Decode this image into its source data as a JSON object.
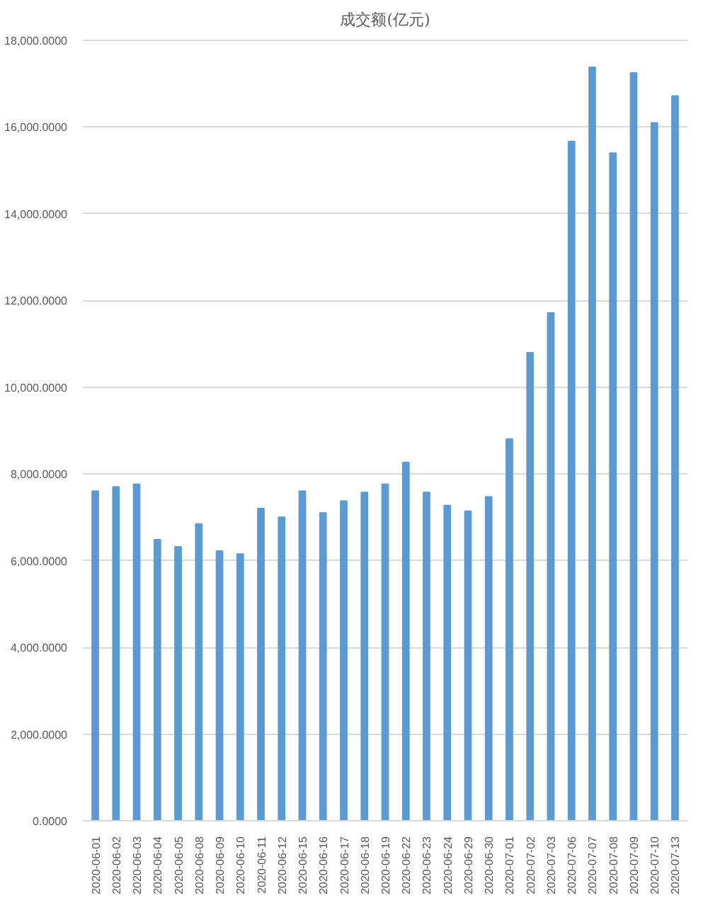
{
  "chart_data": {
    "type": "bar",
    "title": "成交额(亿元)",
    "categories": [
      "2020-06-01",
      "2020-06-02",
      "2020-06-03",
      "2020-06-04",
      "2020-06-05",
      "2020-06-08",
      "2020-06-09",
      "2020-06-10",
      "2020-06-11",
      "2020-06-12",
      "2020-06-15",
      "2020-06-16",
      "2020-06-17",
      "2020-06-18",
      "2020-06-19",
      "2020-06-22",
      "2020-06-23",
      "2020-06-24",
      "2020-06-29",
      "2020-06-30",
      "2020-07-01",
      "2020-07-02",
      "2020-07-03",
      "2020-07-06",
      "2020-07-07",
      "2020-07-08",
      "2020-07-09",
      "2020-07-10",
      "2020-07-13"
    ],
    "values": [
      7600,
      7700,
      7760,
      6480,
      6320,
      6840,
      6220,
      6150,
      7200,
      7000,
      7600,
      7100,
      7370,
      7570,
      7760,
      8260,
      7570,
      7270,
      7140,
      7470,
      8800,
      10790,
      11710,
      15660,
      17370,
      15390,
      17240,
      16090,
      16710
    ],
    "color": "#5b9bd5",
    "ylim": [
      0,
      18000
    ],
    "yticks": [
      {
        "value": 0,
        "label": "0.0000"
      },
      {
        "value": 2000,
        "label": "2,000.0000"
      },
      {
        "value": 4000,
        "label": "4,000.0000"
      },
      {
        "value": 6000,
        "label": "6,000.0000"
      },
      {
        "value": 8000,
        "label": "8,000.0000"
      },
      {
        "value": 10000,
        "label": "10,000.0000"
      },
      {
        "value": 12000,
        "label": "12,000.0000"
      },
      {
        "value": 14000,
        "label": "14,000.0000"
      },
      {
        "value": 16000,
        "label": "16,000.0000"
      },
      {
        "value": 18000,
        "label": "18,000.0000"
      }
    ],
    "grid": "y"
  }
}
